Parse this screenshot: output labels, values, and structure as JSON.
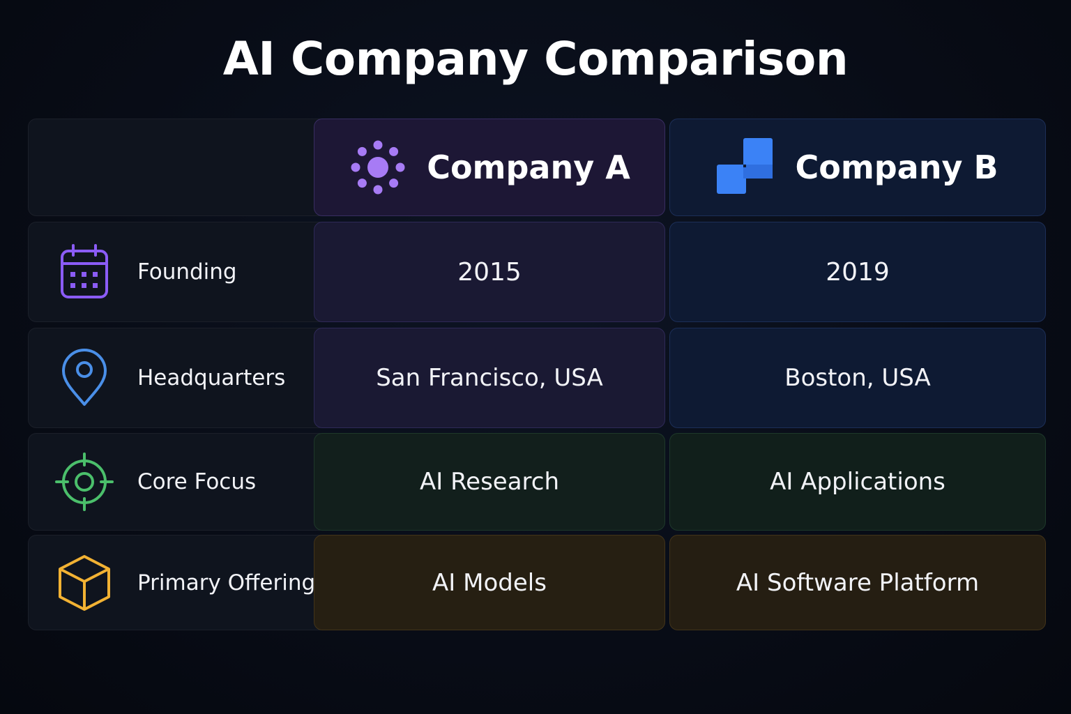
{
  "title": "AI Company Comparison",
  "companies": [
    {
      "name": "Company A",
      "icon": "sun-dots-icon",
      "accent": "#a77bf5"
    },
    {
      "name": "Company B",
      "icon": "blue-squares-icon",
      "accent": "#3b82f6"
    }
  ],
  "rows": [
    {
      "label": "Founding",
      "icon": "calendar-icon",
      "icon_color": "#8b5cf6",
      "a": "2015",
      "b": "2019"
    },
    {
      "label": "Headquarters",
      "icon": "map-pin-icon",
      "icon_color": "#4a8fe8",
      "a": "San Francisco, USA",
      "b": "Boston, USA"
    },
    {
      "label": "Core Focus",
      "icon": "target-icon",
      "icon_color": "#4bbf6b",
      "a": "AI Research",
      "b": "AI Applications"
    },
    {
      "label": "Primary Offering",
      "icon": "box-icon",
      "icon_color": "#f2b233",
      "a": "AI Models",
      "b": "AI Software Platform"
    }
  ]
}
